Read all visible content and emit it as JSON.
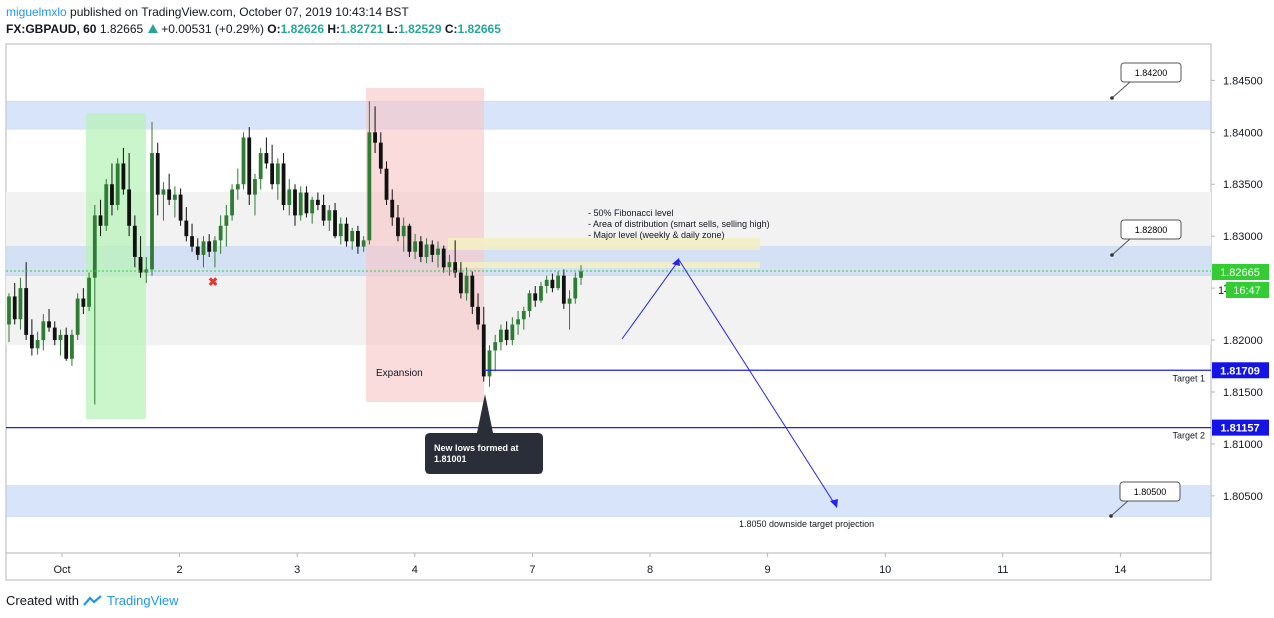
{
  "header": {
    "user": "miguelmxlo",
    "published": " published on TradingView.com, October 07, 2019 10:43:14 BST",
    "symbol": "FX:GBPAUD, 60",
    "last": "1.82665",
    "change": "+0.00531 (+0.29%)",
    "o_label": "O:",
    "o_val": "1.82626",
    "h_label": "H:",
    "h_val": "1.82721",
    "l_label": "L:",
    "l_val": "1.82529",
    "c_label": "C:",
    "c_val": "1.82665"
  },
  "footer": {
    "created_with": "Created with",
    "brand": "TradingView"
  },
  "colors": {
    "up": "#2e7d32",
    "down": "#111111",
    "zone": "#c8daf7",
    "level": "#1e1ee6",
    "green_zone": "#b9f2b9",
    "red_zone": "#f8c4c4"
  },
  "chart_data": {
    "type": "candlestick",
    "x_ticks": [
      "Oct",
      "2",
      "3",
      "4",
      "7",
      "8",
      "9",
      "10",
      "11",
      "14"
    ],
    "y_ticks": [
      "1.84500",
      "1.84000",
      "1.83500",
      "1.83000",
      "1.82500",
      "1.82000",
      "1.81500",
      "1.81000",
      "1.80500"
    ],
    "ylim": [
      1.7995,
      1.8485
    ],
    "candles": [
      [
        1.8215,
        1.8245,
        1.8198,
        1.8242
      ],
      [
        1.8242,
        1.8255,
        1.8215,
        1.822
      ],
      [
        1.822,
        1.826,
        1.821,
        1.825
      ],
      [
        1.825,
        1.8275,
        1.82,
        1.8205
      ],
      [
        1.8205,
        1.822,
        1.8185,
        1.8192
      ],
      [
        1.8192,
        1.8208,
        1.8186,
        1.82
      ],
      [
        1.82,
        1.8225,
        1.819,
        1.8218
      ],
      [
        1.8218,
        1.823,
        1.8208,
        1.8212
      ],
      [
        1.8212,
        1.8218,
        1.8195,
        1.82
      ],
      [
        1.82,
        1.821,
        1.8185,
        1.8205
      ],
      [
        1.8205,
        1.8212,
        1.818,
        1.8182
      ],
      [
        1.8182,
        1.821,
        1.8175,
        1.8205
      ],
      [
        1.8205,
        1.8245,
        1.82,
        1.824
      ],
      [
        1.824,
        1.825,
        1.8225,
        1.8232
      ],
      [
        1.8232,
        1.8265,
        1.8228,
        1.826
      ],
      [
        1.826,
        1.833,
        1.8138,
        1.832
      ],
      [
        1.832,
        1.8335,
        1.83,
        1.831
      ],
      [
        1.831,
        1.8355,
        1.8305,
        1.835
      ],
      [
        1.835,
        1.837,
        1.832,
        1.833
      ],
      [
        1.833,
        1.8375,
        1.8325,
        1.837
      ],
      [
        1.837,
        1.8385,
        1.834,
        1.8345
      ],
      [
        1.8345,
        1.838,
        1.83,
        1.831
      ],
      [
        1.831,
        1.832,
        1.827,
        1.828
      ],
      [
        1.828,
        1.83,
        1.826,
        1.8265
      ],
      [
        1.8265,
        1.828,
        1.8255,
        1.8268
      ],
      [
        1.8268,
        1.841,
        1.8262,
        1.838
      ],
      [
        1.838,
        1.839,
        1.832,
        1.834
      ],
      [
        1.834,
        1.8352,
        1.8315,
        1.8345
      ],
      [
        1.8345,
        1.836,
        1.833,
        1.8335
      ],
      [
        1.8335,
        1.8348,
        1.8318,
        1.834
      ],
      [
        1.834,
        1.8346,
        1.831,
        1.8315
      ],
      [
        1.8315,
        1.8328,
        1.8295,
        1.83
      ],
      [
        1.83,
        1.8312,
        1.8285,
        1.829
      ],
      [
        1.829,
        1.8298,
        1.8277,
        1.8282
      ],
      [
        1.8282,
        1.83,
        1.827,
        1.8295
      ],
      [
        1.8295,
        1.8302,
        1.828,
        1.8285
      ],
      [
        1.8285,
        1.83,
        1.827,
        1.8296
      ],
      [
        1.8296,
        1.832,
        1.8283,
        1.831
      ],
      [
        1.831,
        1.833,
        1.829,
        1.832
      ],
      [
        1.832,
        1.835,
        1.8315,
        1.8345
      ],
      [
        1.8345,
        1.8365,
        1.8335,
        1.835
      ],
      [
        1.835,
        1.84,
        1.8345,
        1.8395
      ],
      [
        1.8395,
        1.8405,
        1.833,
        1.834
      ],
      [
        1.834,
        1.836,
        1.832,
        1.8355
      ],
      [
        1.8355,
        1.8385,
        1.8345,
        1.838
      ],
      [
        1.838,
        1.8395,
        1.8365,
        1.837
      ],
      [
        1.837,
        1.8388,
        1.8345,
        1.835
      ],
      [
        1.835,
        1.8375,
        1.8335,
        1.837
      ],
      [
        1.837,
        1.838,
        1.8325,
        1.833
      ],
      [
        1.833,
        1.8355,
        1.832,
        1.8345
      ],
      [
        1.8345,
        1.835,
        1.831,
        1.832
      ],
      [
        1.832,
        1.8348,
        1.8315,
        1.8342
      ],
      [
        1.8342,
        1.8348,
        1.8318,
        1.8322
      ],
      [
        1.8322,
        1.8338,
        1.8312,
        1.8335
      ],
      [
        1.8335,
        1.8342,
        1.8325,
        1.833
      ],
      [
        1.833,
        1.834,
        1.831,
        1.8315
      ],
      [
        1.8315,
        1.833,
        1.8305,
        1.8325
      ],
      [
        1.8325,
        1.8332,
        1.8298,
        1.83
      ],
      [
        1.83,
        1.8318,
        1.8292,
        1.8312
      ],
      [
        1.8312,
        1.8318,
        1.829,
        1.8295
      ],
      [
        1.8295,
        1.8308,
        1.8287,
        1.8305
      ],
      [
        1.8305,
        1.831,
        1.8283,
        1.829
      ],
      [
        1.829,
        1.83,
        1.8285,
        1.8296
      ],
      [
        1.8296,
        1.843,
        1.8292,
        1.84
      ],
      [
        1.84,
        1.8425,
        1.838,
        1.839
      ],
      [
        1.839,
        1.84,
        1.836,
        1.8365
      ],
      [
        1.8365,
        1.8372,
        1.833,
        1.8335
      ],
      [
        1.8335,
        1.8345,
        1.831,
        1.8318
      ],
      [
        1.8318,
        1.833,
        1.8295,
        1.83
      ],
      [
        1.83,
        1.8318,
        1.8285,
        1.831
      ],
      [
        1.831,
        1.8312,
        1.828,
        1.8285
      ],
      [
        1.8285,
        1.8302,
        1.8278,
        1.8295
      ],
      [
        1.8295,
        1.83,
        1.8275,
        1.828
      ],
      [
        1.828,
        1.8298,
        1.8274,
        1.8292
      ],
      [
        1.8292,
        1.8296,
        1.8275,
        1.8282
      ],
      [
        1.8282,
        1.8295,
        1.827,
        1.8288
      ],
      [
        1.8288,
        1.8291,
        1.8265,
        1.827
      ],
      [
        1.827,
        1.8282,
        1.8262,
        1.8275
      ],
      [
        1.8275,
        1.8296,
        1.826,
        1.8265
      ],
      [
        1.8265,
        1.8275,
        1.824,
        1.8245
      ],
      [
        1.8245,
        1.827,
        1.8238,
        1.8262
      ],
      [
        1.8262,
        1.8266,
        1.8225,
        1.8232
      ],
      [
        1.8232,
        1.8245,
        1.821,
        1.8215
      ],
      [
        1.8215,
        1.8232,
        1.816,
        1.8165
      ],
      [
        1.8165,
        1.8195,
        1.8155,
        1.819
      ],
      [
        1.819,
        1.8205,
        1.817,
        1.8198
      ],
      [
        1.8198,
        1.8215,
        1.819,
        1.821
      ],
      [
        1.821,
        1.8218,
        1.8195,
        1.82
      ],
      [
        1.82,
        1.8222,
        1.8195,
        1.8215
      ],
      [
        1.8215,
        1.8228,
        1.8205,
        1.822
      ],
      [
        1.822,
        1.8232,
        1.821,
        1.8228
      ],
      [
        1.8228,
        1.8248,
        1.8222,
        1.8245
      ],
      [
        1.8245,
        1.8252,
        1.8232,
        1.8238
      ],
      [
        1.8238,
        1.8256,
        1.8236,
        1.8252
      ],
      [
        1.8252,
        1.8262,
        1.8245,
        1.8258
      ],
      [
        1.8258,
        1.8264,
        1.8246,
        1.825
      ],
      [
        1.825,
        1.8266,
        1.8248,
        1.8262
      ],
      [
        1.8262,
        1.8268,
        1.823,
        1.8235
      ],
      [
        1.8235,
        1.8248,
        1.821,
        1.824
      ],
      [
        1.824,
        1.8265,
        1.8235,
        1.826
      ],
      [
        1.826,
        1.8272,
        1.8253,
        1.8266
      ]
    ],
    "zones": [
      {
        "from": 1.8403,
        "to": 1.843
      },
      {
        "from": 1.8262,
        "to": 1.829
      },
      {
        "from": 1.803,
        "to": 1.806
      }
    ],
    "box_labels": [
      "1.84200",
      "1.82800",
      "1.80500"
    ],
    "current_price": "1.82665",
    "countdown": "16:47",
    "levels": [
      {
        "price": "1.81709",
        "label": "Target 1"
      },
      {
        "price": "1.81157",
        "label": "Target 2"
      }
    ],
    "annotations": {
      "fib_lines": [
        "- 50% Fibonacci level",
        "- Area of distribution (smart sells, selling high)",
        "- Major level (weekly & daily zone)"
      ],
      "expansion": "Expansion",
      "new_lows": [
        "New lows formed at",
        "1.81001"
      ],
      "projection": "1.8050 downside target projection"
    }
  }
}
